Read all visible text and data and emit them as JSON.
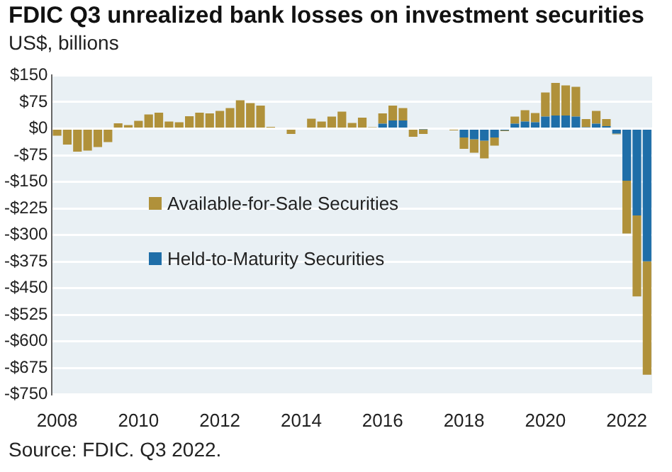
{
  "chart_data": {
    "type": "bar",
    "title": "FDIC Q3 unrealized bank losses on investment securities",
    "subtitle": "US$, billions",
    "annotations": [
      "Source: FDIC. Q3 2022."
    ],
    "categories": [
      "2008",
      null,
      null,
      null,
      null,
      null,
      null,
      null,
      "2010",
      null,
      null,
      null,
      null,
      null,
      null,
      null,
      "2012",
      null,
      null,
      null,
      null,
      null,
      null,
      null,
      "2014",
      null,
      null,
      null,
      null,
      null,
      null,
      null,
      "2016",
      null,
      null,
      null,
      null,
      null,
      null,
      null,
      "2018",
      null,
      null,
      null,
      null,
      null,
      null,
      null,
      "2020",
      null,
      null,
      null,
      null,
      null,
      null,
      null,
      "2022",
      null,
      null
    ],
    "stacked": true,
    "legend": "left",
    "grid": "y",
    "ylim": [
      -750,
      150
    ],
    "yticks": [
      {
        "value": 150,
        "label": "$150"
      },
      {
        "value": 75,
        "label": "$75"
      },
      {
        "value": 0,
        "label": "$0"
      },
      {
        "value": -75,
        "label": "-$75"
      },
      {
        "value": -150,
        "label": "-$150"
      },
      {
        "value": -225,
        "label": "-$225"
      },
      {
        "value": -300,
        "label": "-$300"
      },
      {
        "value": -375,
        "label": "-$375"
      },
      {
        "value": -450,
        "label": "-$450"
      },
      {
        "value": -525,
        "label": "-$525"
      },
      {
        "value": -600,
        "label": "-$600"
      },
      {
        "value": -675,
        "label": "-$675"
      },
      {
        "value": -750,
        "label": "-$750"
      }
    ],
    "series": [
      {
        "name": "Held-to-Maturity Securities",
        "color": "#1f6ea8",
        "values": [
          -3,
          -3,
          -3,
          -3,
          -3,
          -3,
          null,
          null,
          null,
          null,
          null,
          null,
          null,
          null,
          null,
          null,
          null,
          null,
          null,
          null,
          null,
          null,
          null,
          null,
          null,
          null,
          null,
          null,
          null,
          null,
          null,
          null,
          14,
          23,
          23,
          -3,
          -2,
          null,
          null,
          -3,
          -25,
          -30,
          -34,
          -25,
          -5,
          14,
          20,
          18,
          34,
          37,
          37,
          34,
          4,
          14,
          7,
          -14,
          -147,
          -245,
          -374
        ]
      },
      {
        "name": "Available-for-Sale Securities",
        "color": "#b0913a",
        "values": [
          -17,
          -42,
          -62,
          -59,
          -49,
          -35,
          15,
          10,
          22,
          40,
          45,
          20,
          18,
          35,
          45,
          43,
          50,
          58,
          80,
          72,
          65,
          5,
          3,
          -15,
          3,
          28,
          20,
          34,
          48,
          16,
          31,
          4,
          29,
          42,
          35,
          -20,
          -13,
          null,
          null,
          -2,
          -32,
          -38,
          -50,
          -23,
          -2,
          20,
          32,
          26,
          68,
          92,
          85,
          84,
          23,
          36,
          20,
          -2,
          -149,
          -228,
          -320
        ]
      }
    ]
  }
}
